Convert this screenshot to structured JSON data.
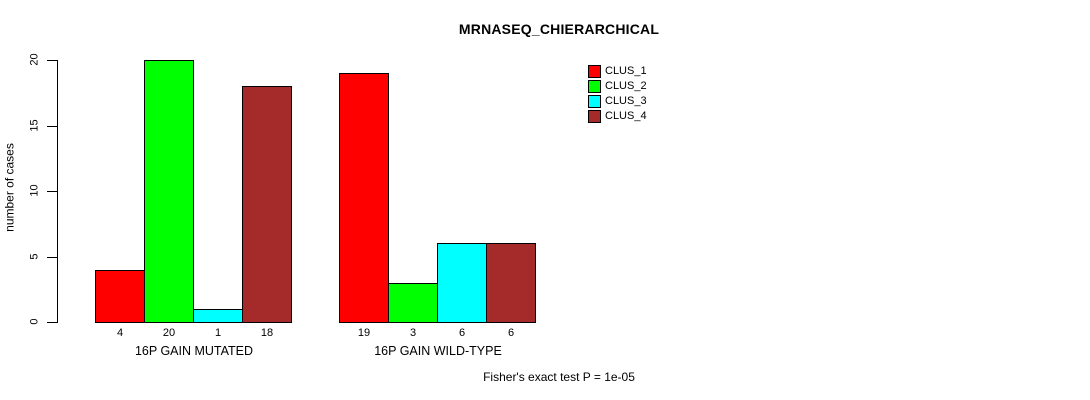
{
  "title": "MRNASEQ_CHIERARCHICAL",
  "y_axis": {
    "label": "number of cases",
    "ticks": [
      "0",
      "5",
      "10",
      "15",
      "20"
    ]
  },
  "footer": "Fisher's exact test P = 1e-05",
  "chart_data": {
    "type": "bar",
    "title": "MRNASEQ_CHIERARCHICAL",
    "xlabel": "",
    "ylabel": "number of cases",
    "ylim": [
      0,
      20
    ],
    "yticks": [
      0,
      5,
      10,
      15,
      20
    ],
    "grid": false,
    "bar_value_labels": true,
    "legend_position": "top-right-inside",
    "categories": [
      "16P GAIN MUTATED",
      "16P GAIN WILD-TYPE"
    ],
    "series": [
      {
        "name": "CLUS_1",
        "color": "#FF0000",
        "values": [
          4,
          19
        ]
      },
      {
        "name": "CLUS_2",
        "color": "#00FF00",
        "values": [
          20,
          3
        ]
      },
      {
        "name": "CLUS_3",
        "color": "#00FFFF",
        "values": [
          1,
          6
        ]
      },
      {
        "name": "CLUS_4",
        "color": "#A52A2A",
        "values": [
          18,
          6
        ]
      }
    ],
    "annotation": "Fisher's exact test P = 1e-05"
  }
}
